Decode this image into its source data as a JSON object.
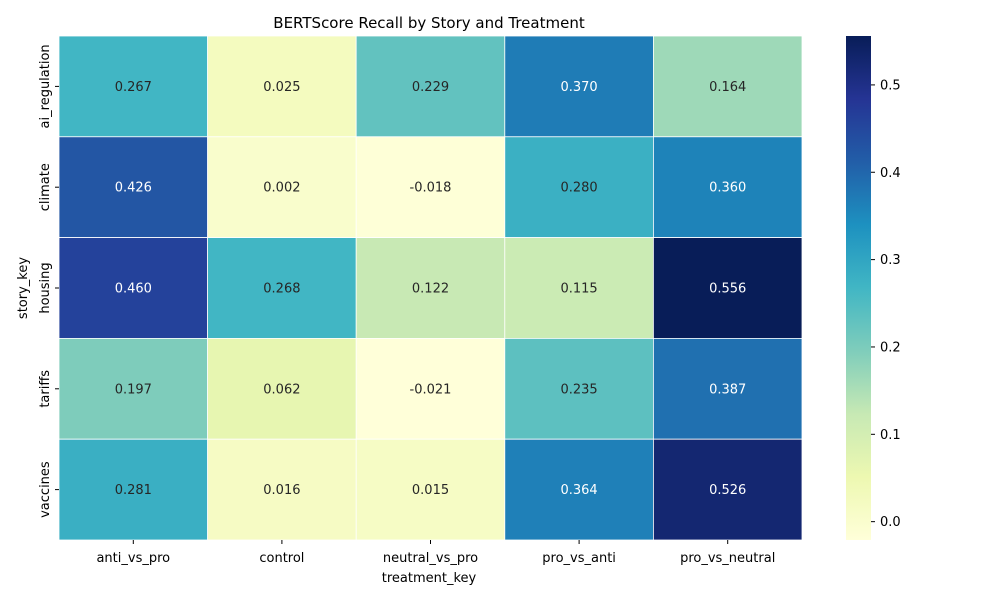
{
  "chart_data": {
    "type": "heatmap",
    "title": "BERTScore Recall by Story and Treatment",
    "xlabel": "treatment_key",
    "ylabel": "story_key",
    "x_categories": [
      "anti_vs_pro",
      "control",
      "neutral_vs_pro",
      "pro_vs_anti",
      "pro_vs_neutral"
    ],
    "y_categories": [
      "ai_regulation",
      "climate",
      "housing",
      "tariffs",
      "vaccines"
    ],
    "values": [
      [
        0.267,
        0.025,
        0.229,
        0.37,
        0.164
      ],
      [
        0.426,
        0.002,
        -0.018,
        0.28,
        0.36
      ],
      [
        0.46,
        0.268,
        0.122,
        0.115,
        0.556
      ],
      [
        0.197,
        0.062,
        -0.021,
        0.235,
        0.387
      ],
      [
        0.281,
        0.016,
        0.015,
        0.364,
        0.526
      ]
    ],
    "value_labels": [
      [
        "0.267",
        "0.025",
        "0.229",
        "0.370",
        "0.164"
      ],
      [
        "0.426",
        "0.002",
        "-0.018",
        "0.280",
        "0.360"
      ],
      [
        "0.460",
        "0.268",
        "0.122",
        "0.115",
        "0.556"
      ],
      [
        "0.197",
        "0.062",
        "-0.021",
        "0.235",
        "0.387"
      ],
      [
        "0.281",
        "0.016",
        "0.015",
        "0.364",
        "0.526"
      ]
    ],
    "colorbar": {
      "colormap": "YlGnBu",
      "vmin": -0.021,
      "vmax": 0.556,
      "ticks": [
        0.0,
        0.1,
        0.2,
        0.3,
        0.4,
        0.5
      ],
      "tick_labels": [
        "0.0",
        "0.1",
        "0.2",
        "0.3",
        "0.4",
        "0.5"
      ]
    }
  }
}
